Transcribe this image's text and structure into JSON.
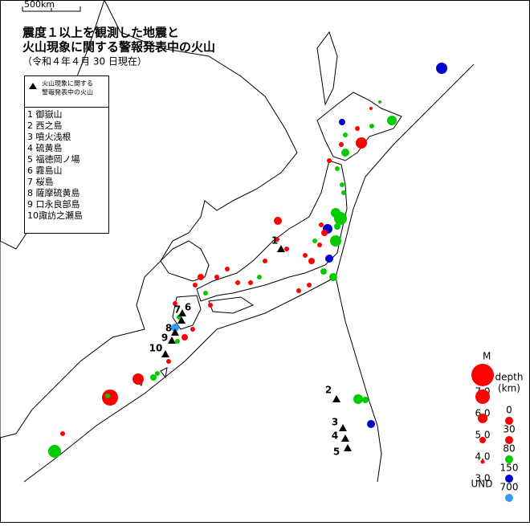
{
  "scale": "500km",
  "header": {
    "title_lines": [
      "震度１以上を観測した地震と",
      "火山現象に関する警報発表中の火山"
    ],
    "date": "（令和４年４月 30 日現在）"
  },
  "legend_box": {
    "symbol_lines": [
      "火山現象に関する",
      "警報発表中の火山"
    ],
    "volcanoes": [
      "1 御嶽山",
      "2 西之島",
      "3 噴火浅根",
      "4 硫黄島",
      "5 福徳岡ノ場",
      "6 霧島山",
      "7 桜島",
      "8 薩摩硫黄島",
      "9 口永良部島",
      "10諏訪之瀬島"
    ]
  },
  "map_labels": [
    "1",
    "2",
    "3",
    "4",
    "5",
    "6",
    "7",
    "8",
    "9",
    "10"
  ],
  "magnitude_legend": {
    "title": "M",
    "labels": [
      "7.0",
      "6.0",
      "5.0",
      "4.0",
      "3.0"
    ],
    "und": "UND"
  },
  "depth_legend": {
    "title_lines": [
      "depth",
      "(km)"
    ],
    "labels": [
      "0",
      "30",
      "80",
      "150",
      "700"
    ]
  }
}
